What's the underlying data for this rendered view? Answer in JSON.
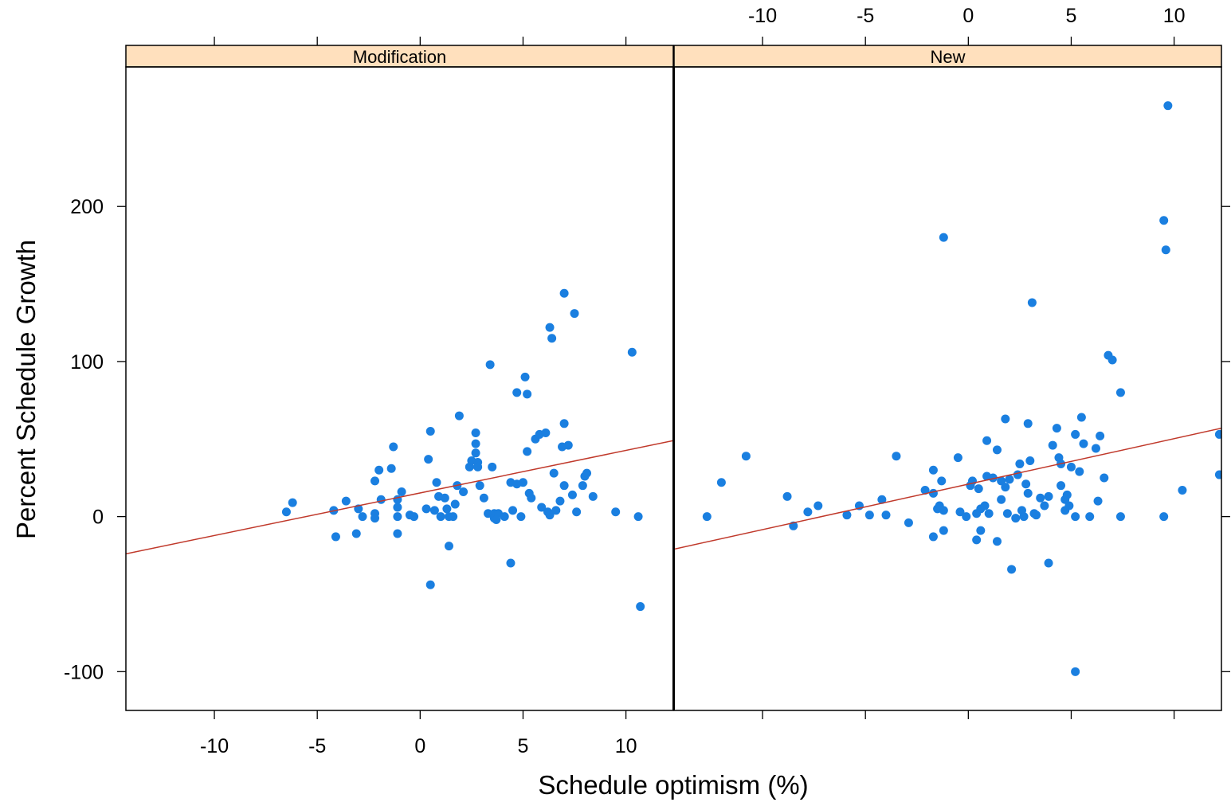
{
  "chart_data": {
    "type": "scatter",
    "xlabel": "Schedule optimism (%)",
    "ylabel": "Percent Schedule Growth",
    "xlim": [
      -14.3,
      12.3
    ],
    "ylim": [
      -125,
      290
    ],
    "x_ticks": [
      -10,
      -5,
      0,
      5,
      10
    ],
    "y_ticks": [
      -100,
      0,
      100,
      200
    ],
    "colors": {
      "points": "#1a7fe0",
      "fit_line": "#c0392b",
      "strip": "#ffe0bd",
      "frame": "#000000"
    },
    "panels": [
      {
        "name": "Modification",
        "fit_line": {
          "x": [
            -14.3,
            12.3
          ],
          "y": [
            -24,
            49
          ]
        },
        "points": [
          [
            -6.5,
            3
          ],
          [
            -6.2,
            9
          ],
          [
            -4.2,
            4
          ],
          [
            -4.1,
            -13
          ],
          [
            -3.6,
            10
          ],
          [
            -3.1,
            -11
          ],
          [
            -3.0,
            5
          ],
          [
            -2.8,
            0
          ],
          [
            -2.2,
            23
          ],
          [
            -2.2,
            2
          ],
          [
            -2.2,
            -1
          ],
          [
            -2.0,
            30
          ],
          [
            -1.9,
            11
          ],
          [
            -1.4,
            31
          ],
          [
            -1.3,
            45
          ],
          [
            -1.1,
            11
          ],
          [
            -1.1,
            6
          ],
          [
            -1.1,
            0
          ],
          [
            -1.1,
            -11
          ],
          [
            -0.9,
            16
          ],
          [
            -0.5,
            1
          ],
          [
            -0.3,
            0
          ],
          [
            0.3,
            5
          ],
          [
            0.4,
            37
          ],
          [
            0.5,
            55
          ],
          [
            0.5,
            -44
          ],
          [
            0.7,
            4
          ],
          [
            0.8,
            22
          ],
          [
            0.9,
            13
          ],
          [
            1.0,
            0
          ],
          [
            1.2,
            12
          ],
          [
            1.3,
            5
          ],
          [
            1.4,
            0
          ],
          [
            1.4,
            -19
          ],
          [
            1.6,
            0
          ],
          [
            1.7,
            8
          ],
          [
            1.8,
            20
          ],
          [
            1.9,
            65
          ],
          [
            2.1,
            16
          ],
          [
            2.4,
            32
          ],
          [
            2.5,
            36
          ],
          [
            2.7,
            54
          ],
          [
            2.7,
            47
          ],
          [
            2.7,
            41
          ],
          [
            2.8,
            35
          ],
          [
            2.8,
            32
          ],
          [
            2.9,
            20
          ],
          [
            3.1,
            12
          ],
          [
            3.3,
            2
          ],
          [
            3.4,
            98
          ],
          [
            3.5,
            32
          ],
          [
            3.6,
            2
          ],
          [
            3.6,
            -1
          ],
          [
            3.7,
            -2
          ],
          [
            3.8,
            2
          ],
          [
            4.1,
            0
          ],
          [
            4.4,
            22
          ],
          [
            4.4,
            -30
          ],
          [
            4.5,
            4
          ],
          [
            4.7,
            80
          ],
          [
            4.7,
            21
          ],
          [
            4.9,
            0
          ],
          [
            5.0,
            22
          ],
          [
            5.1,
            90
          ],
          [
            5.2,
            79
          ],
          [
            5.2,
            42
          ],
          [
            5.3,
            15
          ],
          [
            5.4,
            12
          ],
          [
            5.6,
            50
          ],
          [
            5.8,
            53
          ],
          [
            5.9,
            6
          ],
          [
            6.1,
            54
          ],
          [
            6.2,
            3
          ],
          [
            6.3,
            1
          ],
          [
            6.3,
            122
          ],
          [
            6.4,
            115
          ],
          [
            6.5,
            28
          ],
          [
            6.6,
            4
          ],
          [
            6.8,
            10
          ],
          [
            6.9,
            45
          ],
          [
            7.0,
            144
          ],
          [
            7.0,
            60
          ],
          [
            7.0,
            20
          ],
          [
            7.2,
            46
          ],
          [
            7.4,
            14
          ],
          [
            7.5,
            131
          ],
          [
            7.6,
            3
          ],
          [
            7.9,
            20
          ],
          [
            8.0,
            26
          ],
          [
            8.1,
            28
          ],
          [
            8.4,
            13
          ],
          [
            9.5,
            3
          ],
          [
            10.3,
            106
          ],
          [
            10.6,
            0
          ],
          [
            10.7,
            -58
          ]
        ]
      },
      {
        "name": "New",
        "fit_line": {
          "x": [
            -14.3,
            12.3
          ],
          "y": [
            -21,
            57
          ]
        },
        "points": [
          [
            -12.7,
            0
          ],
          [
            -12.0,
            22
          ],
          [
            -10.8,
            39
          ],
          [
            -8.8,
            13
          ],
          [
            -8.5,
            -6
          ],
          [
            -7.8,
            3
          ],
          [
            -7.3,
            7
          ],
          [
            -5.9,
            1
          ],
          [
            -5.3,
            7
          ],
          [
            -4.8,
            1
          ],
          [
            -4.2,
            11
          ],
          [
            -4.0,
            1
          ],
          [
            -3.5,
            39
          ],
          [
            -2.9,
            -4
          ],
          [
            -2.1,
            17
          ],
          [
            -1.7,
            30
          ],
          [
            -1.7,
            15
          ],
          [
            -1.7,
            -13
          ],
          [
            -1.5,
            5
          ],
          [
            -1.4,
            7
          ],
          [
            -1.3,
            23
          ],
          [
            -1.2,
            180
          ],
          [
            -1.2,
            4
          ],
          [
            -1.2,
            -9
          ],
          [
            -0.5,
            38
          ],
          [
            -0.4,
            3
          ],
          [
            -0.1,
            0
          ],
          [
            0.1,
            20
          ],
          [
            0.2,
            23
          ],
          [
            0.4,
            -15
          ],
          [
            0.4,
            2
          ],
          [
            0.5,
            18
          ],
          [
            0.6,
            5
          ],
          [
            0.6,
            -9
          ],
          [
            0.8,
            7
          ],
          [
            0.9,
            49
          ],
          [
            0.9,
            26
          ],
          [
            1.0,
            2
          ],
          [
            1.2,
            25
          ],
          [
            1.4,
            43
          ],
          [
            1.4,
            -16
          ],
          [
            1.6,
            23
          ],
          [
            1.6,
            11
          ],
          [
            1.8,
            63
          ],
          [
            1.8,
            19
          ],
          [
            1.9,
            2
          ],
          [
            2.0,
            24
          ],
          [
            2.1,
            -34
          ],
          [
            2.3,
            -1
          ],
          [
            2.4,
            27
          ],
          [
            2.5,
            34
          ],
          [
            2.6,
            4
          ],
          [
            2.7,
            0
          ],
          [
            2.8,
            21
          ],
          [
            2.9,
            60
          ],
          [
            2.9,
            15
          ],
          [
            3.0,
            36
          ],
          [
            3.1,
            138
          ],
          [
            3.2,
            2
          ],
          [
            3.3,
            1
          ],
          [
            3.5,
            12
          ],
          [
            3.7,
            7
          ],
          [
            3.9,
            13
          ],
          [
            3.9,
            -30
          ],
          [
            4.1,
            46
          ],
          [
            4.3,
            57
          ],
          [
            4.4,
            38
          ],
          [
            4.5,
            34
          ],
          [
            4.5,
            20
          ],
          [
            4.7,
            11
          ],
          [
            4.7,
            4
          ],
          [
            4.8,
            14
          ],
          [
            4.9,
            7
          ],
          [
            5.0,
            32
          ],
          [
            5.2,
            53
          ],
          [
            5.2,
            0
          ],
          [
            5.2,
            -100
          ],
          [
            5.4,
            29
          ],
          [
            5.5,
            64
          ],
          [
            5.6,
            47
          ],
          [
            5.9,
            0
          ],
          [
            6.2,
            44
          ],
          [
            6.3,
            10
          ],
          [
            6.4,
            52
          ],
          [
            6.6,
            25
          ],
          [
            6.8,
            104
          ],
          [
            7.0,
            101
          ],
          [
            7.4,
            80
          ],
          [
            7.4,
            0
          ],
          [
            9.5,
            191
          ],
          [
            9.5,
            0
          ],
          [
            9.6,
            172
          ],
          [
            9.7,
            265
          ],
          [
            10.4,
            17
          ],
          [
            12.2,
            53
          ],
          [
            12.2,
            27
          ]
        ]
      }
    ]
  }
}
